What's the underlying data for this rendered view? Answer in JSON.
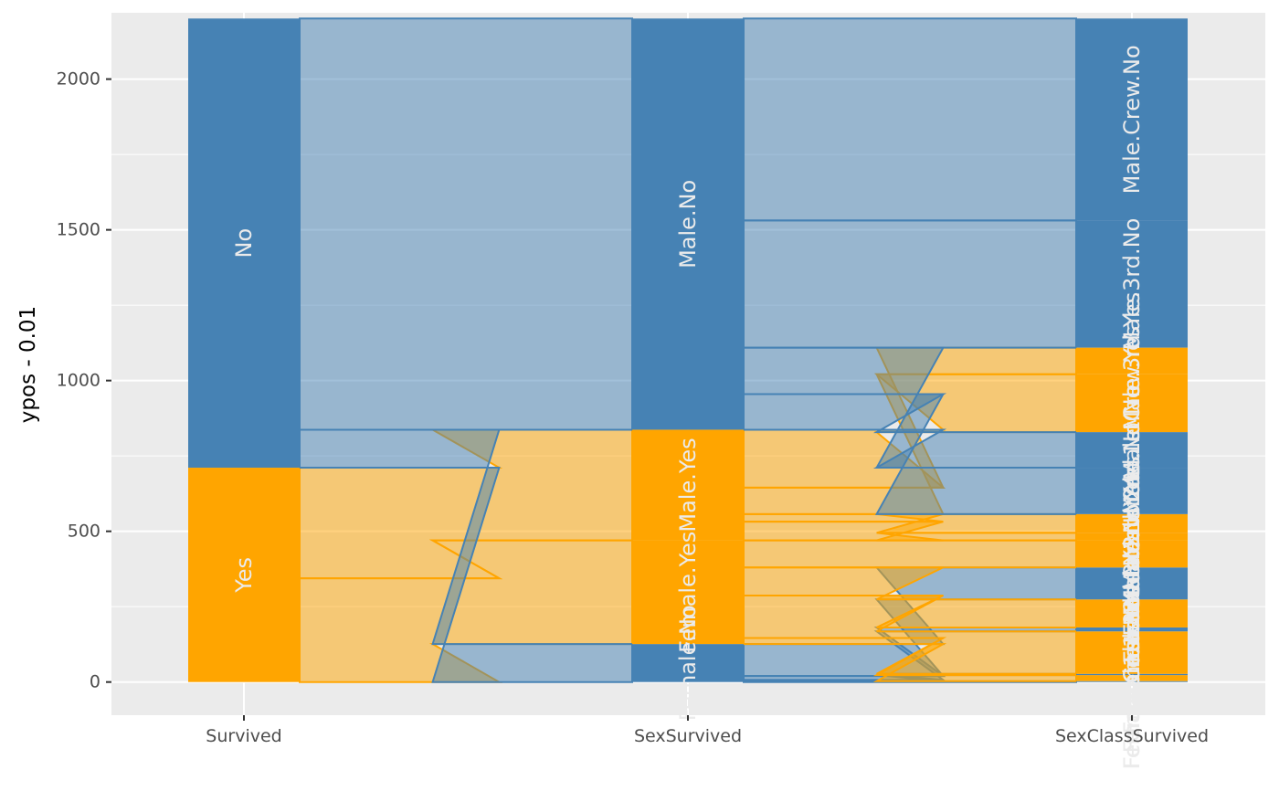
{
  "chart_data": {
    "type": "alluvial",
    "title": "",
    "xlabel": "",
    "ylabel": "ypos - 0.01",
    "ylim": [
      -110,
      2220
    ],
    "y_ticks": [
      0,
      500,
      1000,
      1500,
      2000
    ],
    "grid": true,
    "legend": "none",
    "colors": {
      "No": "#4682B4",
      "Yes": "#FFA500",
      "panel": "#EBEBEB",
      "grid": "#FFFFFF"
    },
    "stages": [
      "Survived",
      "SexSurvived",
      "SexClassSurvived"
    ],
    "nodes": [
      [
        {
          "label": "Yes",
          "group": "Yes",
          "value": 711
        },
        {
          "label": "No",
          "group": "No",
          "value": 1490
        }
      ],
      [
        {
          "label": "Female.No",
          "group": "No",
          "value": 126
        },
        {
          "label": "Female.Yes",
          "group": "Yes",
          "value": 344
        },
        {
          "label": "Male.Yes",
          "group": "Yes",
          "value": 367
        },
        {
          "label": "Male.No",
          "group": "No",
          "value": 1364
        }
      ],
      [
        {
          "label": "Female.Crew.No",
          "group": "No",
          "value": 3
        },
        {
          "label": "Female.Crew.Yes",
          "group": "Yes",
          "value": 20
        },
        {
          "label": "Female.1st.No",
          "group": "No",
          "value": 4
        },
        {
          "label": "Female.1st.Yes",
          "group": "Yes",
          "value": 141
        },
        {
          "label": "Female.2nd.No",
          "group": "No",
          "value": 13
        },
        {
          "label": "Female.2nd.Yes",
          "group": "Yes",
          "value": 93
        },
        {
          "label": "Female.3rd.No",
          "group": "No",
          "value": 106
        },
        {
          "label": "Female.3rd.Yes",
          "group": "Yes",
          "value": 90
        },
        {
          "label": "Male.1st.No",
          "group": "No",
          "value": 118
        },
        {
          "label": "Male.1st.Yes",
          "group": "Yes",
          "value": 62
        },
        {
          "label": "Male.2nd.No",
          "group": "No",
          "value": 154
        },
        {
          "label": "Male.2nd.Yes",
          "group": "Yes",
          "value": 25
        },
        {
          "label": "Male.3rd.No",
          "group": "No",
          "value": 422
        },
        {
          "label": "Male.3rd.Yes",
          "group": "Yes",
          "value": 88
        },
        {
          "label": "Male.Crew.No",
          "group": "No",
          "value": 670
        },
        {
          "label": "Male.Crew.Yes",
          "group": "Yes",
          "value": 192
        }
      ]
    ],
    "node_order": [
      [
        0,
        1
      ],
      [
        0,
        1,
        2,
        3
      ],
      [
        0,
        1,
        2,
        3,
        4,
        5,
        6,
        7,
        11,
        9,
        10,
        8,
        15,
        13,
        12,
        14
      ]
    ],
    "flows": [
      [
        {
          "from": 0,
          "to": 1,
          "value": 344,
          "group": "Yes"
        },
        {
          "from": 0,
          "to": 2,
          "value": 367,
          "group": "Yes"
        },
        {
          "from": 1,
          "to": 0,
          "value": 126,
          "group": "No"
        },
        {
          "from": 1,
          "to": 3,
          "value": 1364,
          "group": "No"
        }
      ],
      [
        {
          "from": 0,
          "to": 0,
          "value": 3,
          "group": "No"
        },
        {
          "from": 0,
          "to": 2,
          "value": 4,
          "group": "No"
        },
        {
          "from": 0,
          "to": 4,
          "value": 13,
          "group": "No"
        },
        {
          "from": 0,
          "to": 6,
          "value": 106,
          "group": "No"
        },
        {
          "from": 1,
          "to": 1,
          "value": 20,
          "group": "Yes"
        },
        {
          "from": 1,
          "to": 3,
          "value": 141,
          "group": "Yes"
        },
        {
          "from": 1,
          "to": 5,
          "value": 93,
          "group": "Yes"
        },
        {
          "from": 1,
          "to": 7,
          "value": 90,
          "group": "Yes"
        },
        {
          "from": 2,
          "to": 9,
          "value": 62,
          "group": "Yes"
        },
        {
          "from": 2,
          "to": 11,
          "value": 25,
          "group": "Yes"
        },
        {
          "from": 2,
          "to": 13,
          "value": 88,
          "group": "Yes"
        },
        {
          "from": 2,
          "to": 15,
          "value": 192,
          "group": "Yes"
        },
        {
          "from": 3,
          "to": 8,
          "value": 118,
          "group": "No"
        },
        {
          "from": 3,
          "to": 10,
          "value": 154,
          "group": "No"
        },
        {
          "from": 3,
          "to": 12,
          "value": 422,
          "group": "No"
        },
        {
          "from": 3,
          "to": 14,
          "value": 670,
          "group": "No"
        }
      ]
    ]
  }
}
